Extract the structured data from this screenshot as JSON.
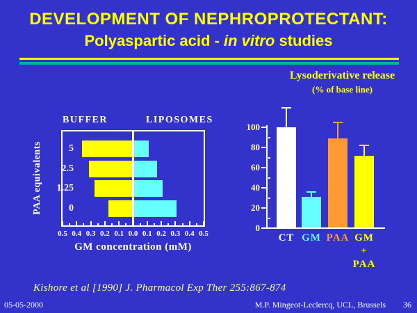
{
  "slide": {
    "background": "#3333CC",
    "title": {
      "line1": "DEVELOPMENT OF NEPHROPROTECTANT:",
      "line2_pre": "Polyaspartic acid - ",
      "line2_italic": "in vitro",
      "line2_post": " studies",
      "color": "#FFFF00"
    },
    "rule_colors": {
      "top": "#FFFF00",
      "bottom": "#00B2A2"
    },
    "citation": "Kishore et al [1990] J. Pharmacol Exp Ther 255:867-874",
    "citation_color": "#FFFFAA",
    "footer": {
      "date": "05-05-2000",
      "credit": "M.P. Mingeot-Leclercq, UCL, Brussels",
      "page": "36"
    }
  },
  "right_chart_heading": {
    "title": "Lysoderivative release",
    "subtitle": "(% of base line)",
    "color": "#FFFF00"
  },
  "chart_data": [
    {
      "type": "bar",
      "orientation": "horizontal-diverging",
      "title": "BUFFER vs LIPOSOMES gentamicin binding",
      "ylabel": "PAA equivalents",
      "xlabel": "GM concentration (mM)",
      "categories": [
        "5",
        "2.5",
        "1.25",
        "0"
      ],
      "series": [
        {
          "name": "BUFFER",
          "side": "left",
          "color": "#FFFF00",
          "values": [
            0.37,
            0.32,
            0.28,
            0.18
          ]
        },
        {
          "name": "LIPOSOMES",
          "side": "right",
          "color": "#66FFFF",
          "values": [
            0.11,
            0.17,
            0.21,
            0.31
          ]
        }
      ],
      "xlim": [
        -0.5,
        0.5
      ],
      "x_tick_labels": [
        "0.5",
        "0.4",
        "0.3",
        "0.2",
        "0.1",
        "0.0",
        "0.1",
        "0.2",
        "0.3",
        "0.4",
        "0.5"
      ],
      "x_minor_step": 0.05,
      "frame": true,
      "frame_color": "#FFFFFF",
      "center_line_color": "#FFFFFF"
    },
    {
      "type": "bar",
      "title": "Lysoderivative release (% of base line)",
      "categories": [
        "CT",
        "GM",
        "PAA",
        "GM + PAA"
      ],
      "category_label_lines": [
        [
          "CT"
        ],
        [
          "GM"
        ],
        [
          "PAA"
        ],
        [
          "GM",
          "+",
          "PAA"
        ]
      ],
      "values": [
        99,
        30,
        88,
        71
      ],
      "error_up": [
        20,
        6,
        17,
        11
      ],
      "bar_colors": [
        "#FFFFFF",
        "#66FFFF",
        "#FF9933",
        "#FFFF00"
      ],
      "label_colors": [
        "#FFFFFF",
        "#66FFFF",
        "#FF9933",
        "#FFFF00"
      ],
      "ylim": [
        0,
        120
      ],
      "y_ticks": [
        0,
        20,
        40,
        60,
        80,
        100
      ],
      "y_minor_ticks": [
        10,
        30,
        50,
        70,
        90
      ],
      "y_tick_label_color": "#FFFF99",
      "axis_color": "#FFFFFF",
      "legend": "none",
      "grid": false
    }
  ]
}
